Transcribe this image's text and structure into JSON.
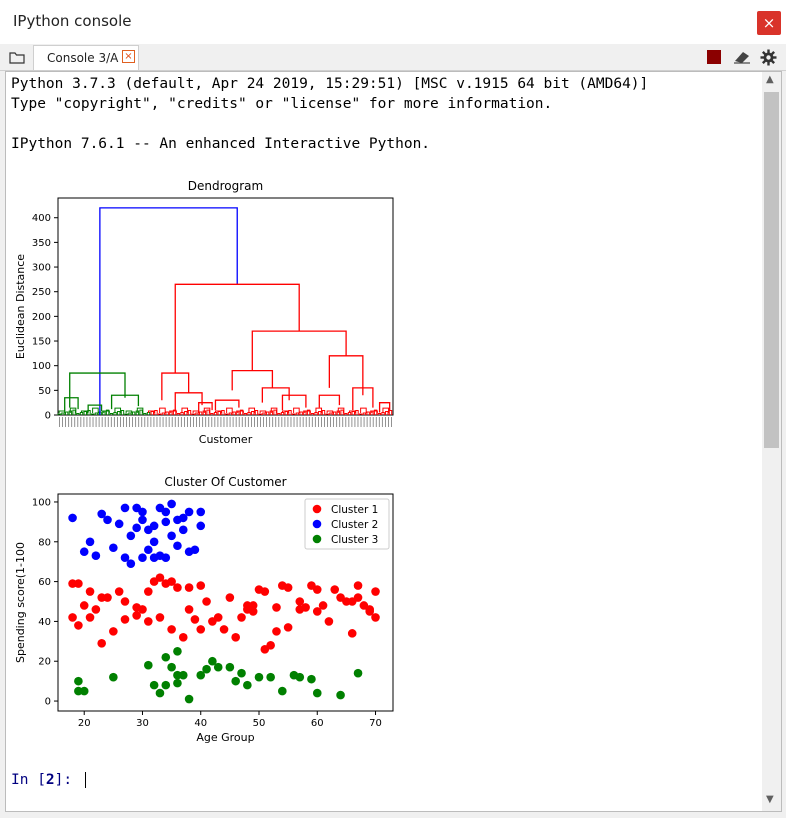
{
  "window": {
    "title": "IPython console",
    "close_glyph": "×"
  },
  "tabs": [
    {
      "label": "Console 3/A",
      "close_glyph": "×"
    }
  ],
  "toolbar": {
    "stop_color": "#8b0000"
  },
  "console": {
    "lines": [
      "Python 3.7.3 (default, Apr 24 2019, 15:29:51) [MSC v.1915 64 bit (AMD64)]",
      "Type \"copyright\", \"credits\" or \"license\" for more information.",
      "IPython 7.6.1 -- An enhanced Interactive Python."
    ],
    "prompt": {
      "prefix": "In [",
      "number": "2",
      "suffix": "]: "
    }
  },
  "chart_data": [
    {
      "type": "dendrogram",
      "title": "Dendrogram",
      "xlabel": "Customer",
      "ylabel": "Euclidean Distance",
      "ylim": [
        0,
        440
      ],
      "yticks": [
        0,
        50,
        100,
        150,
        200,
        250,
        300,
        350,
        400
      ],
      "merges": [
        {
          "left": [
            0.125,
            0
          ],
          "right": [
            0.535,
            265
          ],
          "height": 420,
          "color": "#0000ff"
        },
        {
          "left": [
            0.035,
            15
          ],
          "right": [
            0.2,
            35
          ],
          "height": 85,
          "color": "#008000"
        },
        {
          "left": [
            0.35,
            85
          ],
          "right": [
            0.72,
            170
          ],
          "height": 265,
          "color": "#ff0000"
        },
        {
          "left": [
            0.58,
            90
          ],
          "right": [
            0.86,
            120
          ],
          "height": 170,
          "color": "#ff0000"
        },
        {
          "left": [
            0.81,
            55
          ],
          "right": [
            0.91,
            40
          ],
          "height": 120,
          "color": "#ff0000"
        },
        {
          "left": [
            0.52,
            50
          ],
          "right": [
            0.64,
            55
          ],
          "height": 90,
          "color": "#ff0000"
        },
        {
          "left": [
            0.31,
            30
          ],
          "right": [
            0.39,
            45
          ],
          "height": 85,
          "color": "#ff0000"
        },
        {
          "left": [
            0.02,
            8
          ],
          "right": [
            0.06,
            12
          ],
          "height": 35,
          "color": "#008000"
        },
        {
          "left": [
            0.16,
            12
          ],
          "right": [
            0.24,
            18
          ],
          "height": 40,
          "color": "#008000"
        },
        {
          "left": [
            0.35,
            10
          ],
          "right": [
            0.43,
            20
          ],
          "height": 45,
          "color": "#ff0000"
        },
        {
          "left": [
            0.61,
            25
          ],
          "right": [
            0.69,
            30
          ],
          "height": 55,
          "color": "#ff0000"
        },
        {
          "left": [
            0.67,
            10
          ],
          "right": [
            0.74,
            15
          ],
          "height": 40,
          "color": "#ff0000"
        },
        {
          "left": [
            0.78,
            15
          ],
          "right": [
            0.84,
            20
          ],
          "height": 40,
          "color": "#ff0000"
        },
        {
          "left": [
            0.88,
            10
          ],
          "right": [
            0.94,
            15
          ],
          "height": 55,
          "color": "#ff0000"
        },
        {
          "left": [
            0.47,
            10
          ],
          "right": [
            0.54,
            15
          ],
          "height": 30,
          "color": "#ff0000"
        },
        {
          "left": [
            0.09,
            5
          ],
          "right": [
            0.13,
            8
          ],
          "height": 20,
          "color": "#008000"
        },
        {
          "left": [
            0.42,
            5
          ],
          "right": [
            0.46,
            10
          ],
          "height": 25,
          "color": "#ff0000"
        },
        {
          "left": [
            0.96,
            5
          ],
          "right": [
            0.99,
            10
          ],
          "height": 25,
          "color": "#ff0000"
        }
      ],
      "leaf_band": {
        "green": [
          0.0,
          0.27
        ],
        "red": [
          0.27,
          1.0
        ]
      }
    },
    {
      "type": "scatter",
      "title": "Cluster Of Customer",
      "xlabel": "Age Group",
      "ylabel": "Spending score(1-100",
      "xlim": [
        15.5,
        73
      ],
      "ylim": [
        -5,
        104
      ],
      "xticks": [
        20,
        30,
        40,
        50,
        60,
        70
      ],
      "yticks": [
        0,
        20,
        40,
        60,
        80,
        100
      ],
      "legend": "top-right",
      "series": [
        {
          "name": "Cluster 1",
          "color": "#ff0000",
          "points": [
            [
              18,
              59
            ],
            [
              19,
              59
            ],
            [
              21,
              55
            ],
            [
              23,
              52
            ],
            [
              24,
              52
            ],
            [
              26,
              55
            ],
            [
              27,
              50
            ],
            [
              29,
              47
            ],
            [
              31,
              55
            ],
            [
              32,
              60
            ],
            [
              33,
              62
            ],
            [
              34,
              59
            ],
            [
              35,
              60
            ],
            [
              36,
              57
            ],
            [
              38,
              57
            ],
            [
              40,
              58
            ],
            [
              41,
              50
            ],
            [
              43,
              42
            ],
            [
              45,
              52
            ],
            [
              47,
              42
            ],
            [
              48,
              46
            ],
            [
              49,
              48
            ],
            [
              50,
              56
            ],
            [
              51,
              55
            ],
            [
              53,
              47
            ],
            [
              54,
              58
            ],
            [
              55,
              57
            ],
            [
              57,
              50
            ],
            [
              59,
              58
            ],
            [
              60,
              56
            ],
            [
              61,
              48
            ],
            [
              63,
              56
            ],
            [
              65,
              50
            ],
            [
              66,
              50
            ],
            [
              67,
              58
            ],
            [
              68,
              48
            ],
            [
              69,
              46
            ],
            [
              70,
              55
            ],
            [
              18,
              42
            ],
            [
              19,
              38
            ],
            [
              20,
              48
            ],
            [
              21,
              42
            ],
            [
              22,
              46
            ],
            [
              23,
              29
            ],
            [
              25,
              35
            ],
            [
              27,
              41
            ],
            [
              29,
              43
            ],
            [
              30,
              46
            ],
            [
              31,
              40
            ],
            [
              33,
              42
            ],
            [
              35,
              36
            ],
            [
              37,
              32
            ],
            [
              38,
              46
            ],
            [
              39,
              41
            ],
            [
              40,
              36
            ],
            [
              42,
              40
            ],
            [
              44,
              36
            ],
            [
              46,
              32
            ],
            [
              48,
              48
            ],
            [
              49,
              45
            ],
            [
              51,
              26
            ],
            [
              52,
              28
            ],
            [
              53,
              35
            ],
            [
              55,
              37
            ],
            [
              57,
              46
            ],
            [
              58,
              47
            ],
            [
              60,
              45
            ],
            [
              62,
              40
            ],
            [
              64,
              52
            ],
            [
              66,
              34
            ],
            [
              67,
              52
            ],
            [
              69,
              45
            ],
            [
              70,
              42
            ]
          ]
        },
        {
          "name": "Cluster 2",
          "color": "#0000ff",
          "points": [
            [
              18,
              92
            ],
            [
              20,
              75
            ],
            [
              21,
              80
            ],
            [
              22,
              73
            ],
            [
              23,
              94
            ],
            [
              24,
              91
            ],
            [
              25,
              77
            ],
            [
              26,
              89
            ],
            [
              27,
              72
            ],
            [
              27,
              97
            ],
            [
              28,
              69
            ],
            [
              28,
              83
            ],
            [
              29,
              97
            ],
            [
              29,
              87
            ],
            [
              30,
              91
            ],
            [
              30,
              95
            ],
            [
              31,
              86
            ],
            [
              31,
              76
            ],
            [
              32,
              88
            ],
            [
              32,
              80
            ],
            [
              33,
              73
            ],
            [
              33,
              97
            ],
            [
              34,
              90
            ],
            [
              34,
              95
            ],
            [
              35,
              99
            ],
            [
              35,
              83
            ],
            [
              36,
              91
            ],
            [
              36,
              78
            ],
            [
              37,
              92
            ],
            [
              37,
              86
            ],
            [
              38,
              75
            ],
            [
              38,
              95
            ],
            [
              39,
              76
            ],
            [
              40,
              95
            ],
            [
              40,
              88
            ],
            [
              30,
              72
            ],
            [
              32,
              72
            ],
            [
              34,
              72
            ]
          ]
        },
        {
          "name": "Cluster 3",
          "color": "#008000",
          "points": [
            [
              19,
              10
            ],
            [
              19,
              5
            ],
            [
              20,
              5
            ],
            [
              25,
              12
            ],
            [
              31,
              18
            ],
            [
              32,
              8
            ],
            [
              33,
              4
            ],
            [
              34,
              22
            ],
            [
              35,
              17
            ],
            [
              36,
              25
            ],
            [
              36,
              9
            ],
            [
              37,
              13
            ],
            [
              38,
              1
            ],
            [
              40,
              13
            ],
            [
              41,
              16
            ],
            [
              42,
              20
            ],
            [
              43,
              17
            ],
            [
              45,
              17
            ],
            [
              46,
              10
            ],
            [
              47,
              14
            ],
            [
              48,
              8
            ],
            [
              50,
              12
            ],
            [
              52,
              12
            ],
            [
              54,
              5
            ],
            [
              56,
              13
            ],
            [
              57,
              12
            ],
            [
              59,
              11
            ],
            [
              60,
              4
            ],
            [
              64,
              3
            ],
            [
              67,
              14
            ],
            [
              34,
              8
            ],
            [
              36,
              13
            ]
          ]
        }
      ]
    }
  ]
}
